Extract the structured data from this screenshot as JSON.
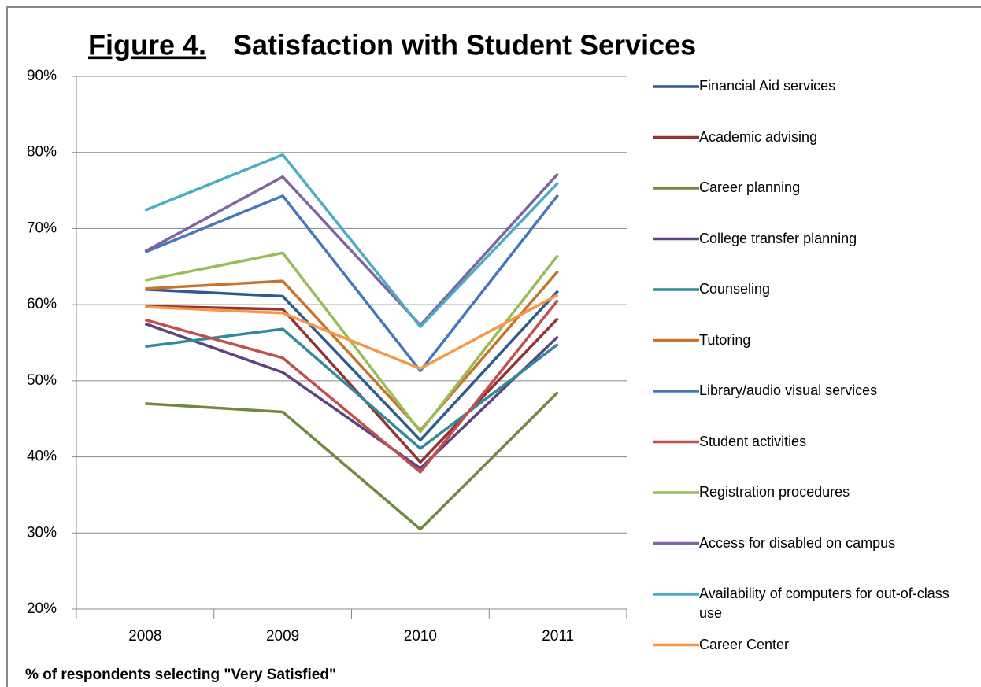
{
  "chart_data": {
    "type": "line",
    "figure_label": "Figure 4.",
    "title": "Satisfaction with Student Services",
    "y_axis_label": "% of respondents selecting \"Very Satisfied\"",
    "categories": [
      "2008",
      "2009",
      "2010",
      "2011"
    ],
    "ylim": [
      20,
      90
    ],
    "yticks": [
      {
        "value": 20,
        "label": "20%"
      },
      {
        "value": 30,
        "label": "30%"
      },
      {
        "value": 40,
        "label": "40%"
      },
      {
        "value": 50,
        "label": "50%"
      },
      {
        "value": 60,
        "label": "60%"
      },
      {
        "value": 70,
        "label": "70%"
      },
      {
        "value": 80,
        "label": "80%"
      },
      {
        "value": 90,
        "label": "90%"
      }
    ],
    "grid": true,
    "legend": "right",
    "series": [
      {
        "name": "Financial Aid services",
        "color": "#2e5b8f",
        "values": [
          62,
          61.1,
          42.2,
          61.8
        ]
      },
      {
        "name": "Academic advising",
        "color": "#923331",
        "values": [
          59.8,
          59.4,
          39.3,
          58.2
        ]
      },
      {
        "name": "Career planning",
        "color": "#71893b",
        "values": [
          47,
          45.9,
          30.5,
          48.5
        ]
      },
      {
        "name": "College transfer planning",
        "color": "#5d4380",
        "values": [
          57.5,
          51.1,
          38.5,
          55.8
        ]
      },
      {
        "name": "Counseling",
        "color": "#2f8b9c",
        "values": [
          54.5,
          56.8,
          41.1,
          54.8
        ]
      },
      {
        "name": "Tutoring",
        "color": "#c8742e",
        "values": [
          62.1,
          63.1,
          43.5,
          64.4
        ]
      },
      {
        "name": "Library/audio visual services",
        "color": "#4577bd",
        "values": [
          66.9,
          74.3,
          51.3,
          74.4
        ]
      },
      {
        "name": " Student activities",
        "color": "#c0504d",
        "values": [
          58,
          53,
          38,
          60.6
        ]
      },
      {
        "name": "Registration procedures",
        "color": "#9bbb59",
        "values": [
          63.2,
          66.8,
          43.3,
          66.5
        ]
      },
      {
        "name": "Access for disabled on campus",
        "color": "#8064a2",
        "values": [
          67,
          76.8,
          57.3,
          77.2
        ]
      },
      {
        "name": "Availability of computers for out-of-class use",
        "color": "#4bacc6",
        "values": [
          72.4,
          79.7,
          57.1,
          76
        ]
      },
      {
        "name": "Career Center",
        "color": "#f79646",
        "values": [
          59.7,
          58.9,
          51.6,
          61.3
        ]
      }
    ]
  }
}
